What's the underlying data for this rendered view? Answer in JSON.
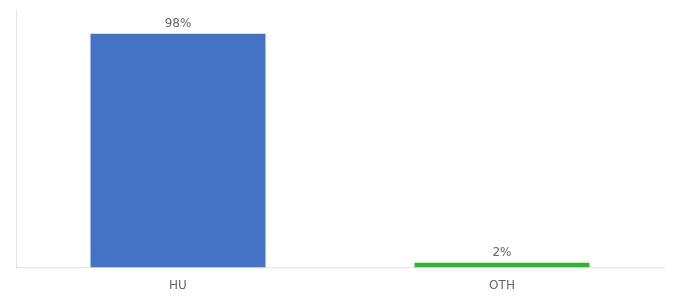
{
  "chart_data": {
    "type": "bar",
    "categories": [
      "HU",
      "OTH"
    ],
    "values": [
      98,
      2
    ],
    "value_labels": [
      "98%",
      "2%"
    ],
    "colors": [
      "#4472c4",
      "#2db52d"
    ],
    "ylim": [
      0,
      108
    ],
    "grid": false,
    "data_labels": true,
    "tick_labels": "x"
  }
}
